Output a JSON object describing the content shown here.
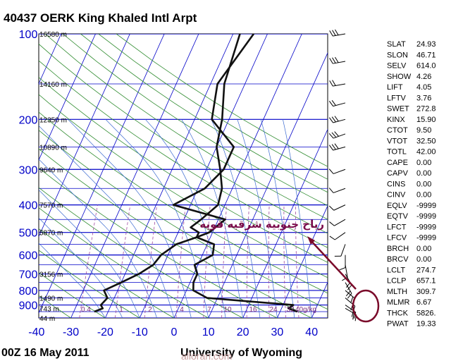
{
  "chart_data": {
    "type": "line",
    "title": "40437 OERK King Khaled Intl Arpt",
    "footer_left": "00Z 16 May 2011",
    "footer_right": "University of Wyoming",
    "watermark": "alloran.com",
    "annotation": "رياح جنوبيه شرقيه قويه",
    "pressure_ticks": [
      100,
      200,
      300,
      400,
      500,
      600,
      700,
      800,
      900
    ],
    "temperature_ticks": [
      -40,
      -30,
      -20,
      -10,
      0,
      10,
      20,
      30,
      40
    ],
    "xlim": [
      -40,
      45
    ],
    "ylim": [
      1000,
      100
    ],
    "height_labels": [
      {
        "text": "16580 m",
        "p": 100
      },
      {
        "text": "14160 m",
        "p": 150
      },
      {
        "text": "12350 m",
        "p": 200
      },
      {
        "text": "10890 m",
        "p": 250
      },
      {
        "text": "9640 m",
        "p": 300
      },
      {
        "text": "7570 m",
        "p": 400
      },
      {
        "text": "5870 m",
        "p": 500
      },
      {
        "text": "3156 m",
        "p": 700
      },
      {
        "text": "1490 m",
        "p": 850
      },
      {
        "text": "743 m",
        "p": 925
      },
      {
        "text": "44 m",
        "p": 1000
      }
    ],
    "mixing_ratio_labels": [
      "0.4",
      "1",
      "2",
      "4",
      "7",
      "10",
      "16",
      "24",
      "32",
      "40g/kg"
    ],
    "series": [
      {
        "name": "Temperature",
        "points": [
          [
            -14,
            100
          ],
          [
            -18,
            150
          ],
          [
            -15,
            200
          ],
          [
            -5,
            250
          ],
          [
            -5,
            300
          ],
          [
            -8,
            350
          ],
          [
            -15,
            400
          ],
          [
            2,
            450
          ],
          [
            -1,
            500
          ],
          [
            -4,
            520
          ],
          [
            2,
            550
          ],
          [
            3,
            600
          ],
          [
            -1,
            650
          ],
          [
            1,
            700
          ],
          [
            1,
            750
          ],
          [
            2,
            800
          ],
          [
            7,
            850
          ],
          [
            33,
            900
          ],
          [
            32,
            925
          ],
          [
            35,
            950
          ]
        ]
      },
      {
        "name": "Dewpoint",
        "points": [
          [
            -18,
            100
          ],
          [
            -16,
            150
          ],
          [
            -12,
            200
          ],
          [
            -10,
            250
          ],
          [
            -6,
            300
          ],
          [
            -3,
            350
          ],
          [
            -2,
            400
          ],
          [
            -5,
            450
          ],
          [
            -7,
            480
          ],
          [
            -4,
            500
          ],
          [
            -4,
            520
          ],
          [
            -9,
            550
          ],
          [
            -12,
            600
          ],
          [
            -13,
            650
          ],
          [
            -16,
            700
          ],
          [
            -20,
            750
          ],
          [
            -24,
            800
          ],
          [
            -22,
            850
          ],
          [
            -23,
            900
          ],
          [
            -22,
            925
          ],
          [
            -24,
            950
          ]
        ]
      }
    ],
    "indices": [
      [
        "SLAT",
        "24.93"
      ],
      [
        "SLON",
        "46.71"
      ],
      [
        "SELV",
        "614.0"
      ],
      [
        "SHOW",
        "4.26"
      ],
      [
        "LIFT",
        "4.05"
      ],
      [
        "LFTV",
        "3.76"
      ],
      [
        "SWET",
        "272.8"
      ],
      [
        "KINX",
        "15.90"
      ],
      [
        "CTOT",
        "9.50"
      ],
      [
        "VTOT",
        "32.50"
      ],
      [
        "TOTL",
        "42.00"
      ],
      [
        "CAPE",
        "0.00"
      ],
      [
        "CAPV",
        "0.00"
      ],
      [
        "CINS",
        "0.00"
      ],
      [
        "CINV",
        "0.00"
      ],
      [
        "EQLV",
        "-9999"
      ],
      [
        "EQTV",
        "-9999"
      ],
      [
        "LFCT",
        "-9999"
      ],
      [
        "LFCV",
        "-9999"
      ],
      [
        "BRCH",
        "0.00"
      ],
      [
        "BRCV",
        "0.00"
      ],
      [
        "LCLT",
        "274.7"
      ],
      [
        "LCLP",
        "657.1"
      ],
      [
        "MLTH",
        "309.7"
      ],
      [
        "MLMR",
        "6.67"
      ],
      [
        "THCK",
        "5826."
      ],
      [
        "PWAT",
        "19.33"
      ]
    ],
    "colors": {
      "isobar": "#0000c8",
      "isotherm": "#0000c8",
      "dry_adiabat": "#2e8b2e",
      "moist_adiabat": "#3a6ad0",
      "mixing_ratio": "#a04aa0",
      "sounding": "#111111",
      "annotation": "#7a0a2a"
    }
  }
}
